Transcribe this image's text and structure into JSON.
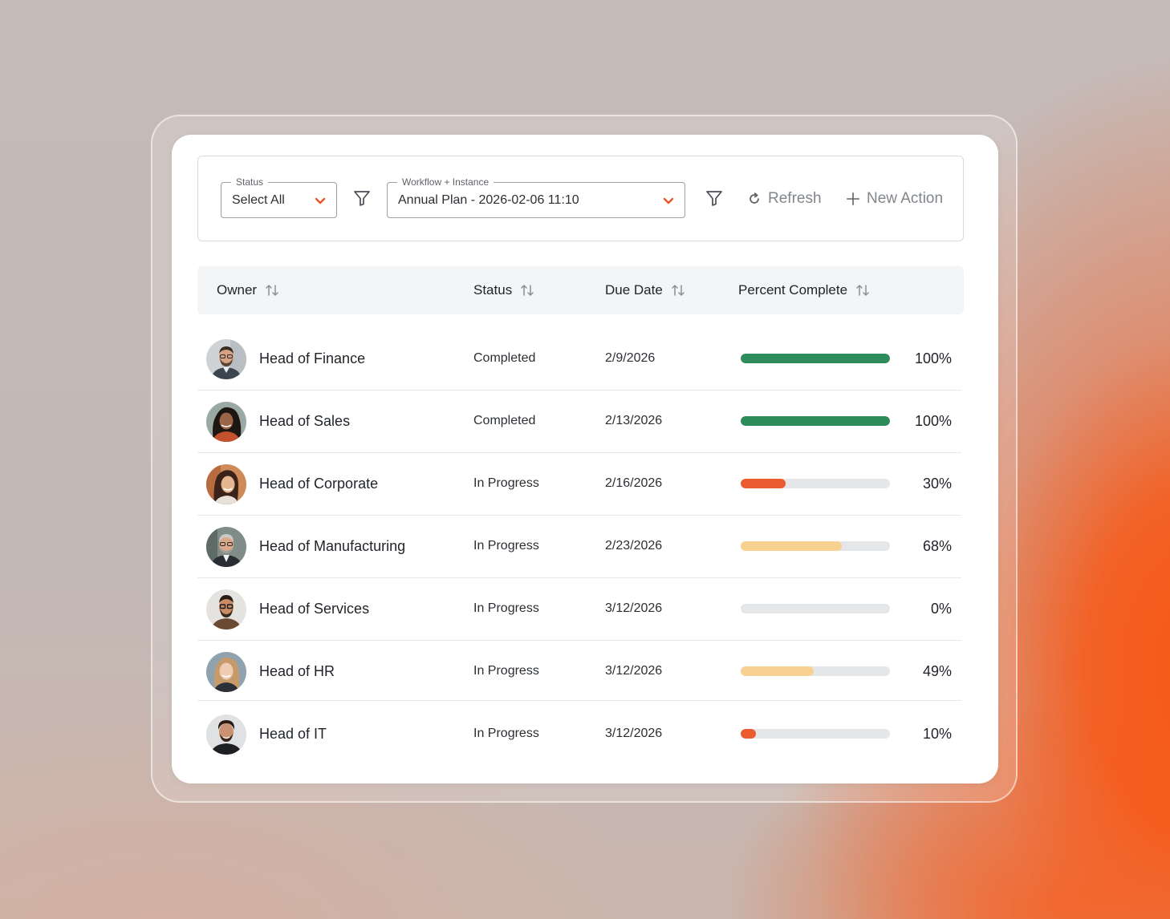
{
  "filters": {
    "status_label": "Status",
    "status_value": "Select All",
    "workflow_label": "Workflow + Instance",
    "workflow_value": "Annual Plan - 2026-02-06 11:10",
    "refresh_label": "Refresh",
    "new_action_label": "New Action"
  },
  "table": {
    "headers": {
      "owner": "Owner",
      "status": "Status",
      "due_date": "Due Date",
      "percent_complete": "Percent Complete"
    },
    "rows": [
      {
        "owner": "Head of Finance",
        "status": "Completed",
        "due_date": "2/9/2026",
        "percent_label": "100%",
        "percent": 100,
        "bar_color": "#2e8b5b"
      },
      {
        "owner": "Head of Sales",
        "status": "Completed",
        "due_date": "2/13/2026",
        "percent_label": "100%",
        "percent": 100,
        "bar_color": "#2e8b5b"
      },
      {
        "owner": "Head of Corporate",
        "status": "In Progress",
        "due_date": "2/16/2026",
        "percent_label": "30%",
        "percent": 30,
        "bar_color": "#ea5b2f"
      },
      {
        "owner": "Head of Manufacturing",
        "status": "In Progress",
        "due_date": "2/23/2026",
        "percent_label": "68%",
        "percent": 68,
        "bar_color": "#f7d190"
      },
      {
        "owner": "Head of Services",
        "status": "In Progress",
        "due_date": "3/12/2026",
        "percent_label": "0%",
        "percent": 0,
        "bar_color": "#e4e6e8"
      },
      {
        "owner": "Head of HR",
        "status": "In Progress",
        "due_date": "3/12/2026",
        "percent_label": "49%",
        "percent": 49,
        "bar_color": "#f7d190"
      },
      {
        "owner": "Head of IT",
        "status": "In Progress",
        "due_date": "3/12/2026",
        "percent_label": "10%",
        "percent": 10,
        "bar_color": "#ea5b2f"
      }
    ]
  },
  "colors": {
    "accent": "#e8562a",
    "complete": "#2e8b5b",
    "in_progress_low": "#ea5b2f",
    "in_progress_mid": "#f7d190",
    "track": "#e4e6e8"
  },
  "icons": {
    "status_dropdown": "chevron-down-icon",
    "filter": "filter-icon",
    "refresh": "refresh-icon",
    "new_action": "plus-icon",
    "sort": "sort-icon"
  }
}
